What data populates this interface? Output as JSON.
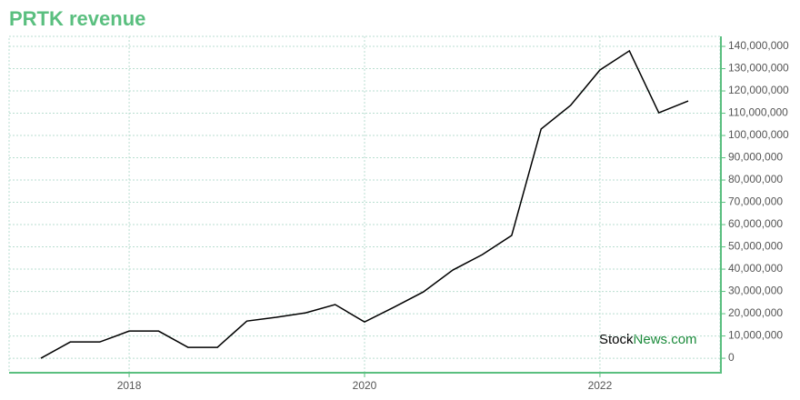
{
  "chart_data": {
    "type": "line",
    "title": "PRTK revenue",
    "x": [
      2017.25,
      2017.5,
      2017.75,
      2018,
      2018.25,
      2018.5,
      2018.75,
      2019,
      2019.25,
      2019.5,
      2019.75,
      2020,
      2020.25,
      2020.5,
      2020.75,
      2021,
      2021.25,
      2021.5,
      2021.75,
      2022,
      2022.25,
      2022.5,
      2022.75
    ],
    "series": [
      {
        "color": "#000000",
        "values": [
          0,
          7300000,
          7300000,
          12200000,
          12200000,
          4900000,
          4900000,
          16700000,
          18400000,
          20400000,
          24100000,
          16300000,
          22900000,
          29800000,
          39600000,
          46500000,
          55100000,
          102900000,
          113500000,
          129400000,
          138000000,
          110200000,
          115500000
        ]
      }
    ],
    "xlim": [
      2016.98,
      2023.02
    ],
    "xticks": [
      2018,
      2020,
      2022
    ],
    "ylim": [
      -6500000,
      144500000
    ],
    "yticks": [
      {
        "value": 0,
        "label": "0"
      },
      {
        "value": 10000000,
        "label": "10,000,000"
      },
      {
        "value": 20000000,
        "label": "20,000,000"
      },
      {
        "value": 30000000,
        "label": "30,000,000"
      },
      {
        "value": 40000000,
        "label": "40,000,000"
      },
      {
        "value": 50000000,
        "label": "50,000,000"
      },
      {
        "value": 60000000,
        "label": "60,000,000"
      },
      {
        "value": 70000000,
        "label": "70,000,000"
      },
      {
        "value": 80000000,
        "label": "80,000,000"
      },
      {
        "value": 90000000,
        "label": "90,000,000"
      },
      {
        "value": 100000000,
        "label": "100,000,000"
      },
      {
        "value": 110000000,
        "label": "110,000,000"
      },
      {
        "value": 120000000,
        "label": "120,000,000"
      },
      {
        "value": 130000000,
        "label": "130,000,000"
      },
      {
        "value": 140000000,
        "label": "140,000,000"
      }
    ],
    "grid": true,
    "axis_color": "#5abf7f",
    "watermark": [
      "Stock",
      "News.com"
    ]
  }
}
